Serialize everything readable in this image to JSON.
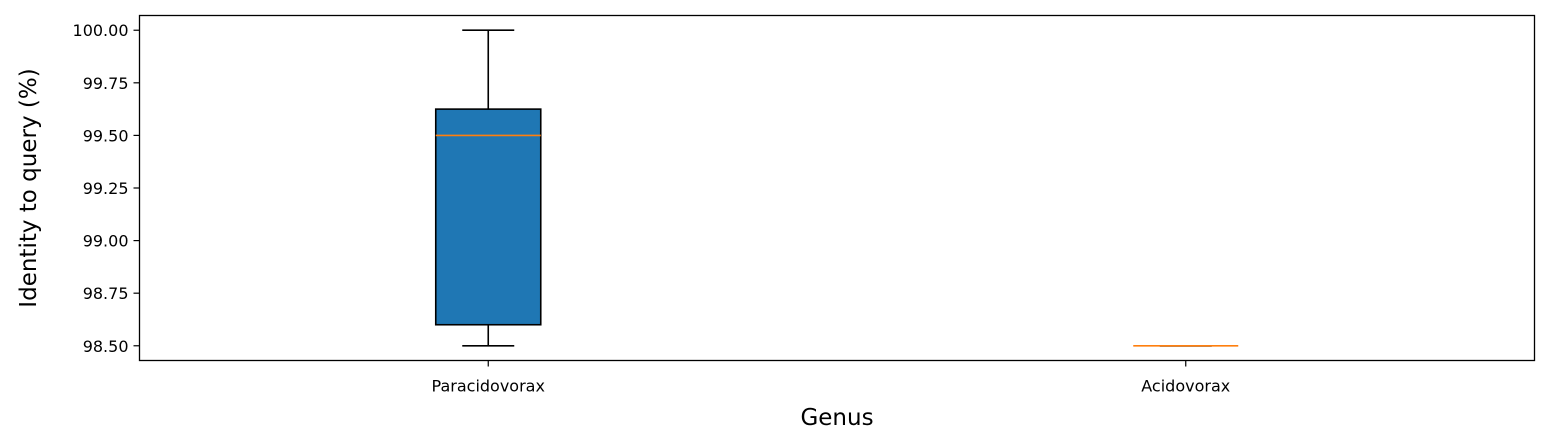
{
  "chart_data": {
    "type": "box",
    "title": "",
    "xlabel": "Genus",
    "ylabel": "Identity to query (%)",
    "ylim": [
      98.43,
      100.07
    ],
    "yticks": [
      98.5,
      98.75,
      99.0,
      99.25,
      99.5,
      99.75,
      100.0
    ],
    "ytick_labels": [
      "98.50",
      "98.75",
      "99.00",
      "99.25",
      "99.50",
      "99.75",
      "100.00"
    ],
    "categories": [
      "Paracidovorax",
      "Acidovorax"
    ],
    "boxes": [
      {
        "category": "Paracidovorax",
        "whisker_low": 98.5,
        "q1": 98.6,
        "median": 99.5,
        "q3": 99.625,
        "whisker_high": 100.0
      },
      {
        "category": "Acidovorax",
        "whisker_low": 98.5,
        "q1": 98.5,
        "median": 98.5,
        "q3": 98.5,
        "whisker_high": 98.5
      }
    ],
    "colors": {
      "box_fill": "#1f77b4",
      "median": "#ff7f0e",
      "lines": "#000000"
    },
    "grid": false,
    "legend": "none"
  }
}
